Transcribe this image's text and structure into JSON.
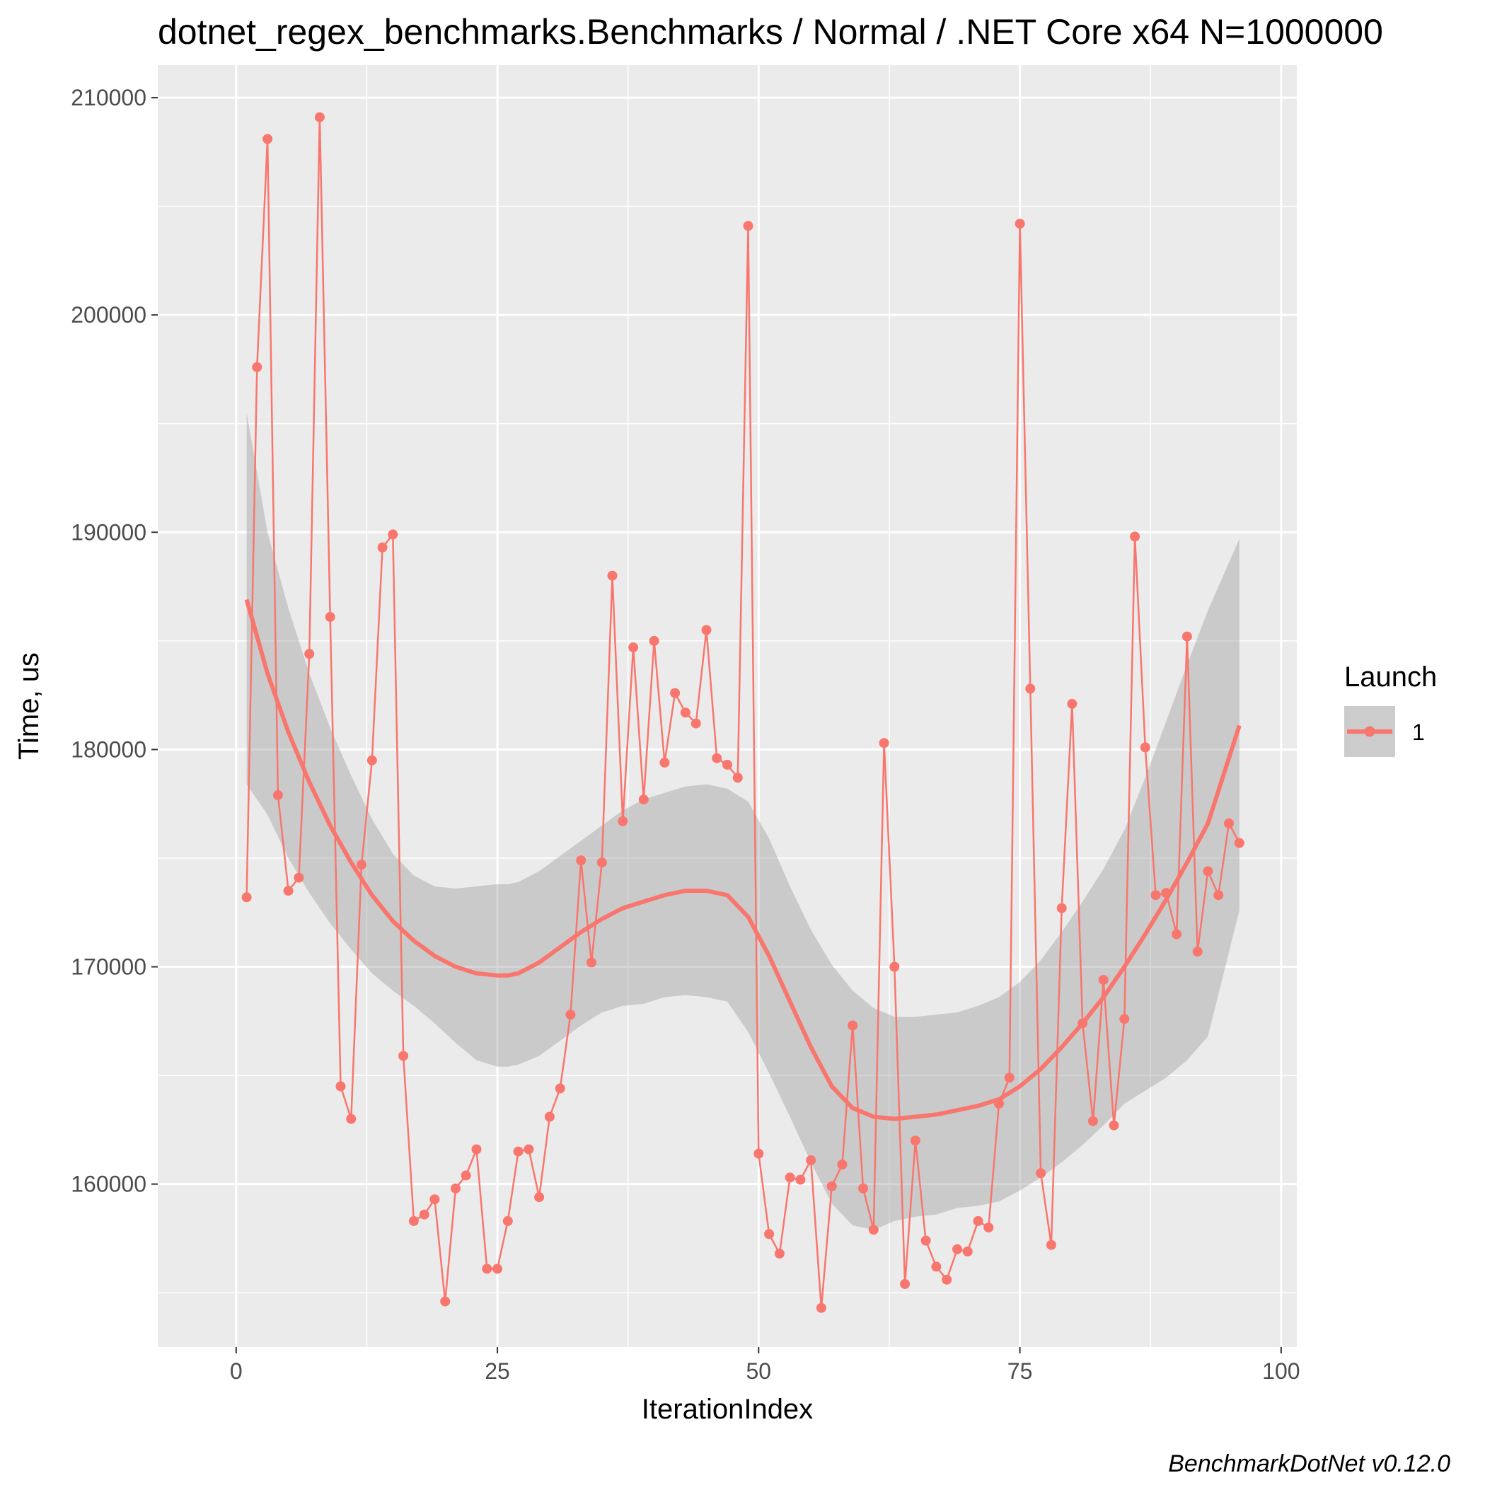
{
  "chart_data": {
    "type": "line",
    "title": "dotnet_regex_benchmarks.Benchmarks / Normal / .NET Core x64 N=1000000",
    "xlabel": "IterationIndex",
    "ylabel": "Time, us",
    "caption": "BenchmarkDotNet v0.12.0",
    "xlim": [
      -7.5,
      101.5
    ],
    "ylim": [
      152500,
      211500
    ],
    "x_ticks": [
      0,
      25,
      50,
      75,
      100
    ],
    "x_tick_labels": [
      "0",
      "25",
      "50",
      "75",
      "100"
    ],
    "y_ticks": [
      160000,
      170000,
      180000,
      190000,
      200000,
      210000
    ],
    "y_tick_labels": [
      "160000",
      "170000",
      "180000",
      "190000",
      "200000",
      "210000"
    ],
    "grid": true,
    "legend": {
      "title": "Launch",
      "position": "right",
      "entries": [
        "1"
      ]
    },
    "colors": {
      "series": "#F8766D",
      "panel": "#EBEBEB",
      "grid": "#FFFFFF",
      "band": "#999999"
    },
    "series": [
      {
        "name": "1",
        "x": [
          1,
          2,
          3,
          4,
          5,
          6,
          7,
          8,
          9,
          10,
          11,
          12,
          13,
          14,
          15,
          16,
          17,
          18,
          19,
          20,
          21,
          22,
          23,
          24,
          25,
          26,
          27,
          28,
          29,
          30,
          31,
          32,
          33,
          34,
          35,
          36,
          37,
          38,
          39,
          40,
          41,
          42,
          43,
          44,
          45,
          46,
          47,
          48,
          49,
          50,
          51,
          52,
          53,
          54,
          55,
          56,
          57,
          58,
          59,
          60,
          61,
          62,
          63,
          64,
          65,
          66,
          67,
          68,
          69,
          70,
          71,
          72,
          73,
          74,
          75,
          76,
          77,
          78,
          79,
          80,
          81,
          82,
          83,
          84,
          85,
          86,
          87,
          88,
          89,
          90,
          91,
          92,
          93,
          94,
          95,
          96
        ],
        "values": [
          173200,
          197600,
          208100,
          177900,
          173500,
          174100,
          184400,
          209100,
          186100,
          164500,
          163000,
          174700,
          179500,
          189300,
          189900,
          165900,
          158300,
          158600,
          159300,
          154600,
          159800,
          160400,
          161600,
          156100,
          156100,
          158300,
          161500,
          161600,
          159400,
          163100,
          164400,
          167800,
          174900,
          170200,
          174800,
          188000,
          176700,
          184700,
          177700,
          185000,
          179400,
          182600,
          181700,
          181200,
          185500,
          179600,
          179300,
          178700,
          204100,
          161400,
          157700,
          156800,
          160300,
          160200,
          161100,
          154300,
          159900,
          160900,
          167300,
          159800,
          157900,
          180300,
          170000,
          155400,
          162000,
          157400,
          156200,
          155600,
          157000,
          156900,
          158300,
          158000,
          163700,
          164900,
          204200,
          182800,
          160500,
          157200,
          172700,
          182100,
          167400,
          162900,
          169400,
          162700,
          167600,
          189800,
          180100,
          173300,
          173400,
          171500,
          185200,
          170700,
          174400,
          173300,
          176600,
          175700
        ]
      }
    ],
    "smooth": {
      "x": [
        1,
        3,
        5,
        7,
        9,
        11,
        13,
        15,
        17,
        19,
        21,
        23,
        25,
        26,
        27,
        29,
        31,
        33,
        35,
        37,
        39,
        41,
        43,
        45,
        47,
        49,
        51,
        53,
        55,
        57,
        59,
        61,
        63,
        65,
        67,
        69,
        71,
        73,
        75,
        77,
        79,
        81,
        83,
        85,
        87,
        89,
        91,
        93,
        96
      ],
      "fit": [
        186900,
        183500,
        180800,
        178500,
        176500,
        174800,
        173300,
        172100,
        171200,
        170500,
        170000,
        169700,
        169600,
        169600,
        169700,
        170200,
        170900,
        171600,
        172200,
        172700,
        173000,
        173300,
        173500,
        173500,
        173300,
        172300,
        170500,
        168400,
        166300,
        164500,
        163500,
        163100,
        163000,
        163100,
        163200,
        163400,
        163600,
        163900,
        164500,
        165300,
        166300,
        167400,
        168600,
        170000,
        171500,
        173100,
        174800,
        176600,
        181100
      ],
      "upper": [
        195500,
        190000,
        186500,
        183500,
        181000,
        178800,
        176800,
        175200,
        174200,
        173700,
        173600,
        173700,
        173800,
        173800,
        173900,
        174400,
        175100,
        175800,
        176500,
        177200,
        177700,
        178000,
        178300,
        178400,
        178200,
        177600,
        175900,
        173700,
        171700,
        170100,
        168900,
        168100,
        167700,
        167700,
        167800,
        167900,
        168200,
        168600,
        169300,
        170300,
        171600,
        173000,
        174500,
        176300,
        178700,
        181300,
        183900,
        186400,
        189700
      ],
      "lower": [
        178400,
        177000,
        175000,
        173400,
        172000,
        170800,
        169700,
        168900,
        168200,
        167400,
        166500,
        165700,
        165400,
        165400,
        165500,
        165900,
        166600,
        167300,
        167900,
        168200,
        168300,
        168600,
        168700,
        168600,
        168400,
        167000,
        165100,
        163100,
        161000,
        159100,
        158100,
        157900,
        158300,
        158500,
        158600,
        158900,
        159000,
        159200,
        159700,
        160300,
        161000,
        161800,
        162700,
        163700,
        164300,
        164900,
        165700,
        166800,
        172600
      ]
    }
  }
}
